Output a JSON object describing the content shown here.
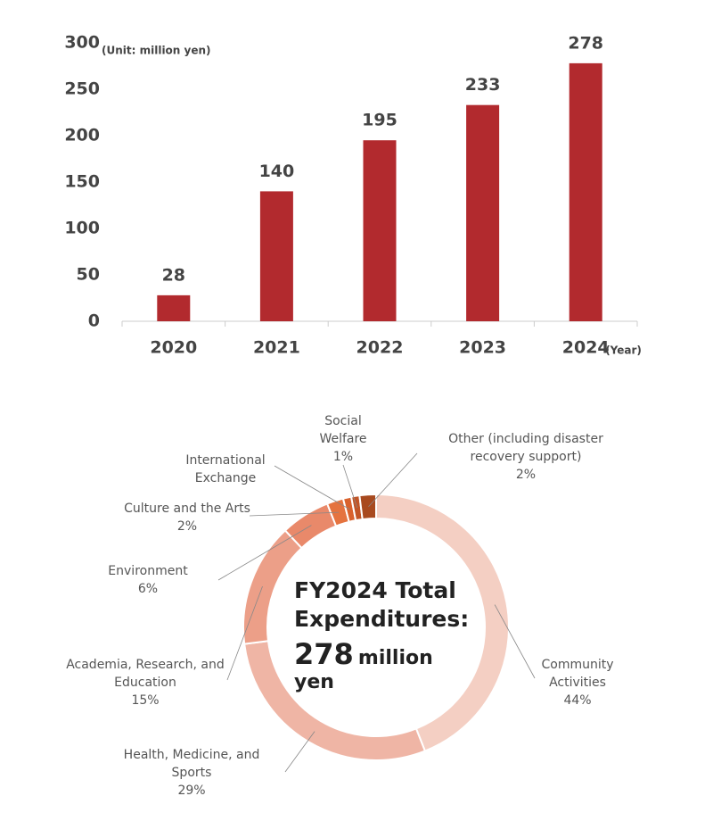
{
  "chart_data": [
    {
      "type": "bar",
      "unit_label": "(Unit: million yen)",
      "x_unit_label": "(Year)",
      "categories": [
        "2020",
        "2021",
        "2022",
        "2023",
        "2024"
      ],
      "values": [
        28,
        140,
        195,
        233,
        278
      ],
      "color": "#b22a2e",
      "ylim": [
        0,
        300
      ],
      "yticks": [
        0,
        50,
        100,
        150,
        200,
        250,
        300
      ],
      "grid": false
    },
    {
      "type": "donut",
      "center_title": "FY2024 Total Expenditures:",
      "total": 278,
      "total_unit": "million yen",
      "categories": [
        "Community Activities",
        "Health, Medicine, and Sports",
        "Academia, Research, and Education",
        "Environment",
        "Culture and the Arts",
        "International Exchange",
        "Social Welfare",
        "Other (including disaster recovery support)"
      ],
      "values": [
        44,
        29,
        15,
        6,
        2,
        1,
        1,
        2
      ],
      "value_labels": [
        "44%",
        "29%",
        "15%",
        "6%",
        "2%",
        null,
        "1%",
        "2%"
      ],
      "colors": [
        "#f4cfc3",
        "#efb5a5",
        "#ec9f88",
        "#e9896a",
        "#e5733f",
        "#d9622d",
        "#c25526",
        "#a84a1f"
      ]
    }
  ]
}
